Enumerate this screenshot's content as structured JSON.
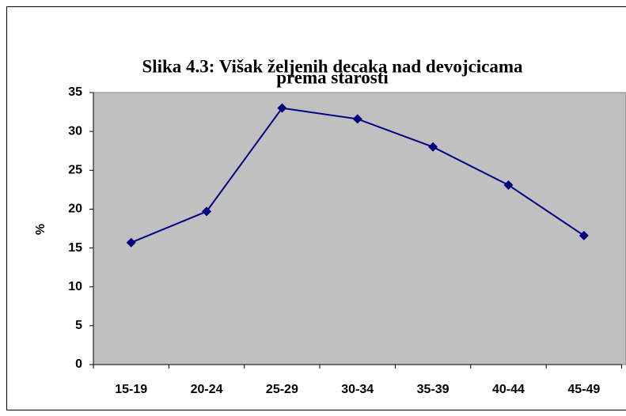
{
  "chart_data": {
    "type": "line",
    "title": [
      "Slika 4.3:  Višak željenih decaka nad devojcicama",
      "prema starosti"
    ],
    "y_label": "%",
    "categories": [
      "15-19",
      "20-24",
      "25-29",
      "30-34",
      "35-39",
      "40-44",
      "45-49"
    ],
    "series": [
      {
        "name": "%",
        "color": "#000080",
        "values": [
          15.7,
          19.7,
          33.0,
          31.6,
          28.0,
          23.1,
          16.6
        ]
      }
    ],
    "ylim": [
      0,
      35
    ],
    "yticks": [
      0,
      5,
      10,
      15,
      20,
      25,
      30,
      35
    ],
    "grid": false,
    "legend": false
  }
}
